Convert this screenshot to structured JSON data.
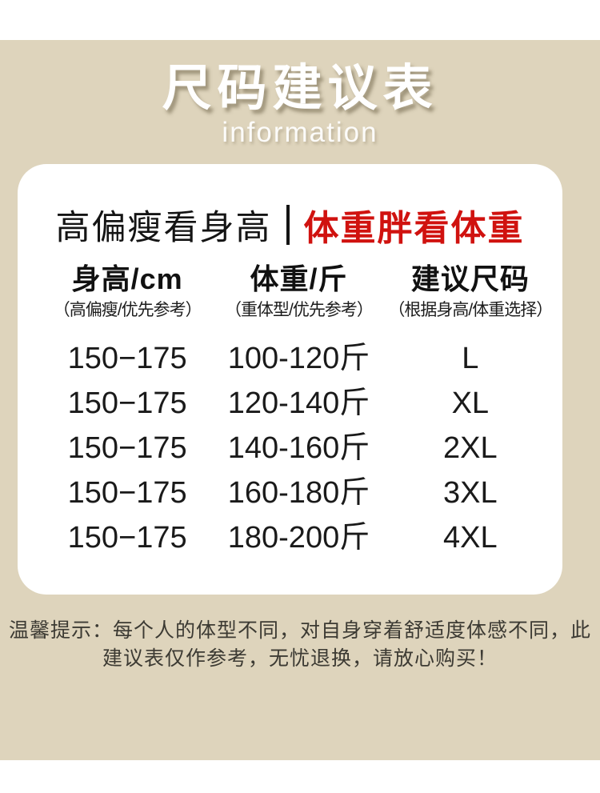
{
  "page": {
    "title": "尺码建议表",
    "subtitle": "information"
  },
  "tagline": {
    "left": "高偏瘦看身高",
    "right": "体重胖看体重"
  },
  "table": {
    "columns": [
      {
        "label": "身高/cm",
        "note": "（高偏瘦/优先参考）"
      },
      {
        "label": "体重/斤",
        "note": "（重体型/优先参考）"
      },
      {
        "label": "建议尺码",
        "note": "（根据身高/体重选择）"
      }
    ],
    "rows": [
      {
        "height": "150−175",
        "weight": "100-120斤",
        "size": "L"
      },
      {
        "height": "150−175",
        "weight": "120-140斤",
        "size": "XL"
      },
      {
        "height": "150−175",
        "weight": "140-160斤",
        "size": "2XL"
      },
      {
        "height": "150−175",
        "weight": "160-180斤",
        "size": "3XL"
      },
      {
        "height": "150−175",
        "weight": "180-200斤",
        "size": "4XL"
      }
    ]
  },
  "note": {
    "line1": "温馨提示：每个人的体型不同，对自身穿着舒适度体感不同，此",
    "line2": "建议表仅作参考，无忧退换，请放心购买！"
  },
  "colors": {
    "background_beige": "#ded4bc",
    "accent_red": "#d0120f",
    "text_dark": "#1a1a1a",
    "note_text": "#3c3a33"
  }
}
